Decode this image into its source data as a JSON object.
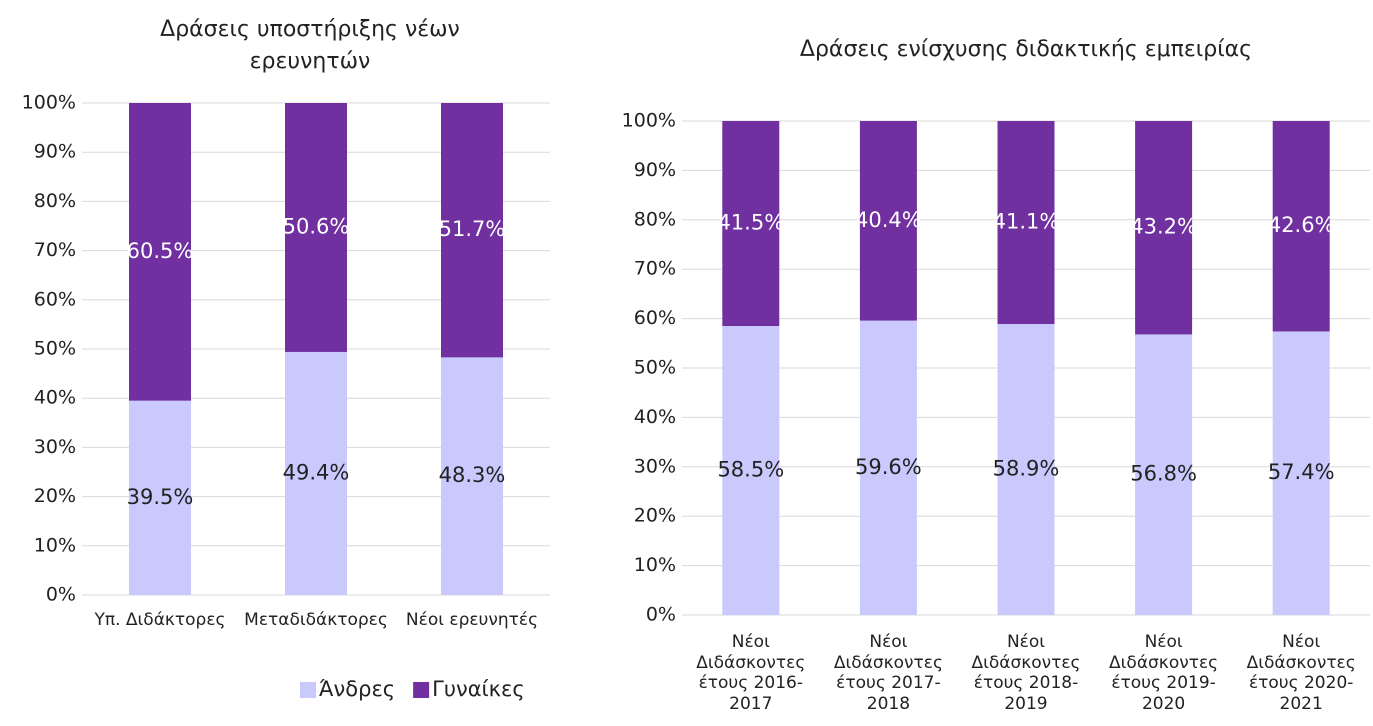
{
  "chart_data": [
    {
      "type": "bar",
      "stacked": true,
      "title": "Δράσεις υποστήριξης νέων ερευνητών",
      "categories": [
        "Υπ. Διδάκτορες",
        "Μεταδιδάκτορες",
        "Νέοι ερευνητές"
      ],
      "series": [
        {
          "name": "Άνδρες",
          "color": "#c9c9fe",
          "values": [
            39.5,
            49.4,
            48.3
          ],
          "value_labels": [
            "39.5%",
            "49.4%",
            "48.3%"
          ]
        },
        {
          "name": "Γυναίκες",
          "color": "#7030a0",
          "values": [
            60.5,
            50.6,
            51.7
          ],
          "value_labels": [
            "60.5%",
            "50.6%",
            "51.7%"
          ]
        }
      ],
      "ylim": [
        0,
        100
      ],
      "yticks": [
        {
          "value": 0,
          "label": "0%"
        },
        {
          "value": 10,
          "label": "10%"
        },
        {
          "value": 20,
          "label": "20%"
        },
        {
          "value": 30,
          "label": "30%"
        },
        {
          "value": 40,
          "label": "40%"
        },
        {
          "value": 50,
          "label": "50%"
        },
        {
          "value": 60,
          "label": "60%"
        },
        {
          "value": 70,
          "label": "70%"
        },
        {
          "value": 80,
          "label": "80%"
        },
        {
          "value": 90,
          "label": "90%"
        },
        {
          "value": 100,
          "label": "100%"
        }
      ],
      "grid": true,
      "legend": "bottom-right"
    },
    {
      "type": "bar",
      "stacked": true,
      "title": "Δράσεις ενίσχυσης διδακτικής εμπειρίας",
      "categories": [
        "Νέοι Διδάσκοντες έτους 2016-2017",
        "Νέοι Διδάσκοντες έτους 2017-2018",
        "Νέοι Διδάσκοντες έτους 2018-2019",
        "Νέοι Διδάσκοντες έτους 2019-2020",
        "Νέοι Διδάσκοντες έτους 2020-2021"
      ],
      "series": [
        {
          "color": "#c9c9fe",
          "values": [
            58.5,
            59.6,
            58.9,
            56.8,
            57.4
          ],
          "value_labels": [
            "58.5%",
            "59.6%",
            "58.9%",
            "56.8%",
            "57.4%"
          ]
        },
        {
          "color": "#7030a0",
          "values": [
            41.5,
            40.4,
            41.1,
            43.2,
            42.6
          ],
          "value_labels": [
            "41.5%",
            "40.4%",
            "41.1%",
            "43.2%",
            "42.6%"
          ]
        }
      ],
      "ylim": [
        0,
        100
      ],
      "yticks": [
        {
          "value": 0,
          "label": "0%"
        },
        {
          "value": 10,
          "label": "10%"
        },
        {
          "value": 20,
          "label": "20%"
        },
        {
          "value": 30,
          "label": "30%"
        },
        {
          "value": 40,
          "label": "40%"
        },
        {
          "value": 50,
          "label": "50%"
        },
        {
          "value": 60,
          "label": "60%"
        },
        {
          "value": 70,
          "label": "70%"
        },
        {
          "value": 80,
          "label": "80%"
        },
        {
          "value": 90,
          "label": "90%"
        },
        {
          "value": 100,
          "label": "100%"
        }
      ],
      "grid": true,
      "legend": false
    }
  ]
}
